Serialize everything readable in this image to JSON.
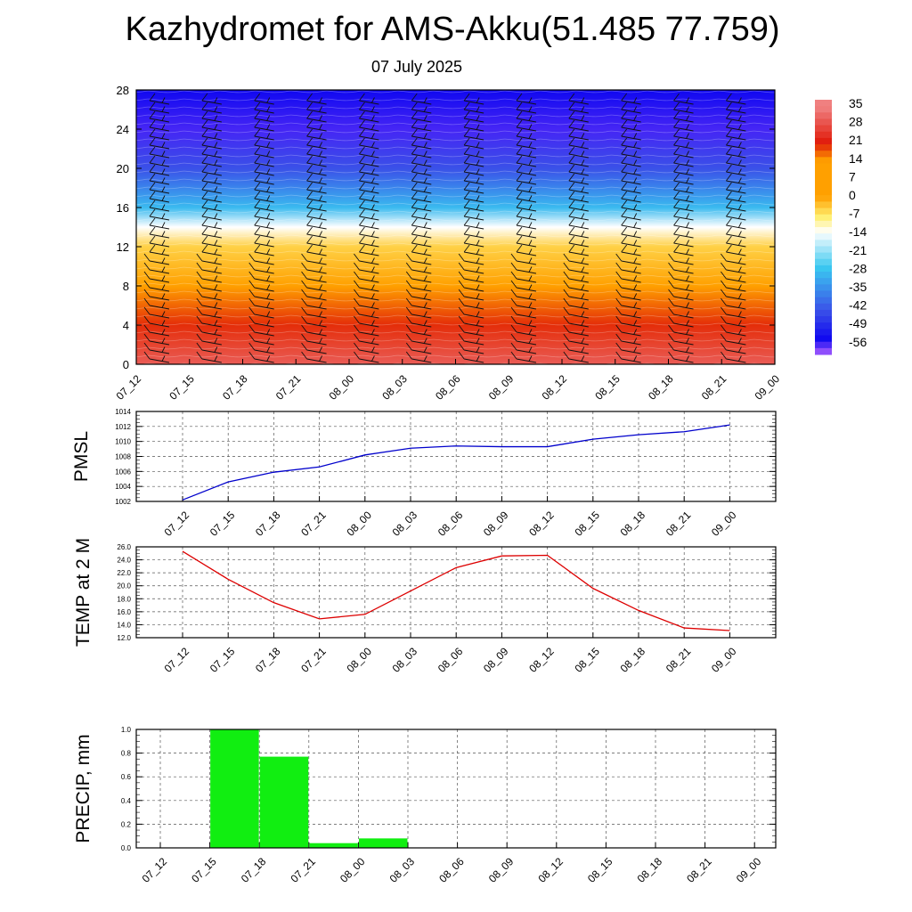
{
  "title": "Kazhydromet for AMS-Akku(51.485 77.759)",
  "subtitle": "07 July 2025",
  "time_labels": [
    "07_12",
    "07_15",
    "07_18",
    "07_21",
    "08_00",
    "08_03",
    "08_06",
    "08_09",
    "08_12",
    "08_15",
    "08_18",
    "08_21",
    "09_00"
  ],
  "chart_data": [
    {
      "type": "heatmap",
      "y_ticks": [
        "0",
        "4",
        "8",
        "12",
        "16",
        "20",
        "24",
        "28"
      ],
      "ylim": [
        0,
        28
      ],
      "colorbar_labels": [
        "35",
        "28",
        "21",
        "14",
        "7",
        "0",
        "-7",
        "-14",
        "-21",
        "-28",
        "-35",
        "-42",
        "-49",
        "-56"
      ],
      "vertical_temperature_profile": {
        "level": [
          0,
          4,
          8,
          12,
          14,
          16,
          20,
          24,
          28
        ],
        "temperature": [
          30,
          20,
          10,
          -5,
          -14,
          -30,
          -45,
          -58,
          -56
        ]
      },
      "colors": {
        "red": "#e01a0a",
        "orange": "#ffa000",
        "yellow": "#ffef70",
        "cyan": "#3ac8f0",
        "blue": "#3a50e8",
        "dark_blue": "#1008f0",
        "violet": "#b060ff"
      }
    },
    {
      "type": "line",
      "ylabel": "PMSL",
      "y_ticks": [
        "1002",
        "1004",
        "1006",
        "1008",
        "1010",
        "1012",
        "1014"
      ],
      "ylim": [
        1002,
        1014
      ],
      "color": "#0000cc",
      "values": [
        1002.2,
        1004.6,
        1005.9,
        1006.6,
        1008.2,
        1009.1,
        1009.4,
        1009.3,
        1009.3,
        1010.3,
        1010.9,
        1011.3,
        1012.2
      ]
    },
    {
      "type": "line",
      "ylabel": "TEMP at 2 M",
      "y_ticks": [
        "12.0",
        "14.0",
        "16.0",
        "18.0",
        "20.0",
        "22.0",
        "24.0",
        "26.0"
      ],
      "ylim": [
        12,
        26
      ],
      "color": "#dd0000",
      "values": [
        25.3,
        21.0,
        17.4,
        14.9,
        15.6,
        19.2,
        22.8,
        24.6,
        24.7,
        19.6,
        16.2,
        13.5,
        13.1
      ]
    },
    {
      "type": "bar",
      "ylabel": "PRECIP, mm",
      "y_ticks": [
        "0.0",
        "0.2",
        "0.4",
        "0.6",
        "0.8",
        "1.0"
      ],
      "ylim": [
        0,
        1.0
      ],
      "color": "#11ee11",
      "values": [
        0,
        1.0,
        0.77,
        0.04,
        0.08,
        0,
        0,
        0,
        0,
        0,
        0,
        0,
        0
      ]
    }
  ]
}
